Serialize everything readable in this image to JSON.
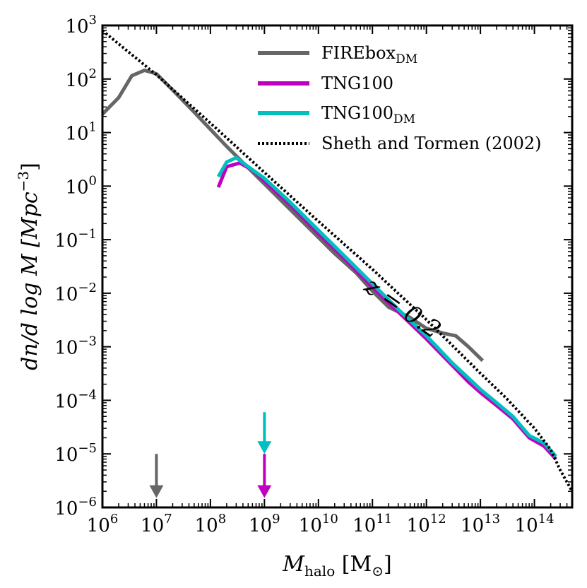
{
  "chart_data": {
    "type": "line",
    "xscale": "log",
    "yscale": "log",
    "xlabel_main": "M",
    "xlabel_sub": "halo",
    "xlabel_unit": "[M",
    "xlabel_unit_sub": "⊙",
    "xlabel_unit_close": "]",
    "ylabel": "dn/d log M [Mpc",
    "ylabel_sup": "−3",
    "ylabel_close": "]",
    "xlim": [
      1000000.0,
      500000000000000.0
    ],
    "ylim": [
      1e-06,
      1000.0
    ],
    "x_ticks": [
      {
        "exp": 6,
        "base": "10",
        "sup": "6"
      },
      {
        "exp": 7,
        "base": "10",
        "sup": "7"
      },
      {
        "exp": 8,
        "base": "10",
        "sup": "8"
      },
      {
        "exp": 9,
        "base": "10",
        "sup": "9"
      },
      {
        "exp": 10,
        "base": "10",
        "sup": "10"
      },
      {
        "exp": 11,
        "base": "10",
        "sup": "11"
      },
      {
        "exp": 12,
        "base": "10",
        "sup": "12"
      },
      {
        "exp": 13,
        "base": "10",
        "sup": "13"
      },
      {
        "exp": 14,
        "base": "10",
        "sup": "14"
      }
    ],
    "y_ticks": [
      {
        "exp": -6,
        "base": "10",
        "sup": "−6"
      },
      {
        "exp": -5,
        "base": "10",
        "sup": "−5"
      },
      {
        "exp": -4,
        "base": "10",
        "sup": "−4"
      },
      {
        "exp": -3,
        "base": "10",
        "sup": "−3"
      },
      {
        "exp": -2,
        "base": "10",
        "sup": "−2"
      },
      {
        "exp": -1,
        "base": "10",
        "sup": "−1"
      },
      {
        "exp": 0,
        "base": "10",
        "sup": "0"
      },
      {
        "exp": 1,
        "base": "10",
        "sup": "1"
      },
      {
        "exp": 2,
        "base": "10",
        "sup": "2"
      },
      {
        "exp": 3,
        "base": "10",
        "sup": "3"
      }
    ],
    "annotation": {
      "text": "z = 0.2",
      "x": 300000000000.0,
      "y": 0.004,
      "rotation_deg": 35
    },
    "legend_position": "top-right",
    "series": [
      {
        "name": "FIREbox",
        "name_sub": "DM",
        "color": "#666666",
        "style": "solid",
        "x": [
          1000000.0,
          2000000.0,
          3500000.0,
          6000000.0,
          10000000.0,
          20000000.0,
          50000000.0,
          100000000.0,
          200000000.0,
          500000000.0,
          1000000000.0,
          2000000000.0,
          5000000000.0,
          10000000000.0,
          20000000000.0,
          50000000000.0,
          100000000000.0,
          200000000000.0,
          500000000000.0,
          1000000000000.0,
          2000000000000.0,
          3500000000000.0,
          6000000000000.0,
          11000000000000.0
        ],
        "y": [
          22,
          45,
          115,
          145,
          125,
          62,
          24,
          11.5,
          5.5,
          2.2,
          1.1,
          0.55,
          0.22,
          0.11,
          0.055,
          0.024,
          0.011,
          0.0055,
          0.0035,
          0.0022,
          0.0018,
          0.0016,
          0.001,
          0.00055
        ]
      },
      {
        "name": "TNG100",
        "name_sub": "",
        "color": "#c000c0",
        "style": "solid",
        "x": [
          140000000.0,
          200000000.0,
          350000000.0,
          600000000.0,
          1000000000.0,
          3000000000.0,
          10000000000.0,
          30000000000.0,
          100000000000.0,
          300000000000.0,
          1000000000000.0,
          3000000000000.0,
          6000000000000.0,
          10000000000000.0,
          20000000000000.0,
          40000000000000.0,
          80000000000000.0,
          150000000000000.0,
          250000000000000.0
        ],
        "y": [
          0.95,
          2.3,
          2.7,
          2.0,
          1.25,
          0.45,
          0.13,
          0.045,
          0.013,
          0.0045,
          0.0014,
          0.00045,
          0.00022,
          0.00014,
          8e-05,
          4.5e-05,
          2e-05,
          1.4e-05,
          8e-06
        ]
      },
      {
        "name": "TNG100",
        "name_sub": "DM",
        "color": "#00bfbf",
        "style": "solid",
        "x": [
          140000000.0,
          200000000.0,
          300000000.0,
          500000000.0,
          1000000000.0,
          3000000000.0,
          10000000000.0,
          30000000000.0,
          100000000000.0,
          300000000000.0,
          1000000000000.0,
          3000000000000.0,
          6000000000000.0,
          10000000000000.0,
          20000000000000.0,
          40000000000000.0,
          80000000000000.0,
          150000000000000.0,
          250000000000000.0
        ],
        "y": [
          1.5,
          2.8,
          3.4,
          2.3,
          1.4,
          0.5,
          0.15,
          0.05,
          0.015,
          0.005,
          0.0016,
          0.0005,
          0.00026,
          0.00016,
          9e-05,
          5e-05,
          2.2e-05,
          1.6e-05,
          9e-06
        ]
      },
      {
        "name": "Sheth and Tormen (2002)",
        "name_sub": "",
        "color": "#000000",
        "style": "dotted",
        "x": [
          1000000.0,
          10000000.0,
          100000000.0,
          1000000000.0,
          10000000000.0,
          100000000000.0,
          1000000000000.0,
          10000000000000.0,
          30000000000000.0,
          100000000000000.0,
          200000000000000.0,
          300000000000000.0,
          500000000000000.0
        ],
        "y": [
          800,
          120,
          15,
          1.8,
          0.22,
          0.028,
          0.0032,
          0.00032,
          0.00011,
          3e-05,
          1.2e-05,
          5e-06,
          2e-06
        ]
      }
    ],
    "arrows": [
      {
        "name": "firebox-resolution-arrow",
        "x": 10000000.0,
        "y_top": 1e-05,
        "y_bottom": 1.5e-06,
        "color": "#666666"
      },
      {
        "name": "tng100dm-resolution-arrow",
        "x": 1000000000.0,
        "y_top": 6e-05,
        "y_bottom": 1e-05,
        "color": "#00bfbf"
      },
      {
        "name": "tng100-resolution-arrow",
        "x": 1000000000.0,
        "y_top": 1e-05,
        "y_bottom": 1.5e-06,
        "color": "#c000c0"
      }
    ]
  }
}
